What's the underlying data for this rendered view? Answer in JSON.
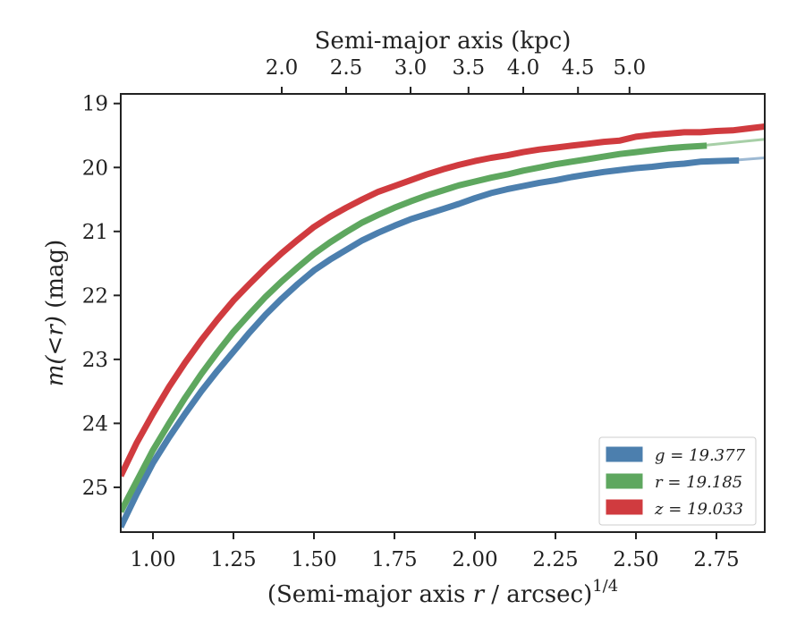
{
  "chart_data": {
    "type": "line",
    "xlabel": "(Semi-major axis",
    "xlabel_var": "r",
    "xlabel_mid": " / arcsec)",
    "xlabel_sup": "1/4",
    "ylabel_var": "m(<r)",
    "ylabel_unit": " (mag)",
    "top_xlabel": "Semi-major axis (kpc)",
    "xlim": [
      0.9,
      2.9
    ],
    "ylim": [
      25.7,
      18.85
    ],
    "x_ticks": [
      1.0,
      1.25,
      1.5,
      1.75,
      2.0,
      2.25,
      2.5,
      2.75
    ],
    "x_tick_labels": [
      "1.00",
      "1.25",
      "1.50",
      "1.75",
      "2.00",
      "2.25",
      "2.50",
      "2.75"
    ],
    "y_ticks": [
      19,
      20,
      21,
      22,
      23,
      24,
      25
    ],
    "y_tick_labels": [
      "19",
      "20",
      "21",
      "22",
      "23",
      "24",
      "25"
    ],
    "top_ticks": [
      2.0,
      2.5,
      3.0,
      3.5,
      4.0,
      4.5,
      5.0
    ],
    "top_tick_labels": [
      "2.0",
      "2.5",
      "3.0",
      "3.5",
      "4.0",
      "4.5",
      "5.0"
    ],
    "top_tick_positions": [
      1.4,
      1.6,
      1.8,
      1.98,
      2.15,
      2.32,
      2.48
    ],
    "legend_position": "lower-right",
    "series": [
      {
        "name": "g",
        "legend_label": "g = 19.377",
        "color": "#4c7fae",
        "x": [
          0.9,
          0.95,
          1.0,
          1.05,
          1.1,
          1.15,
          1.2,
          1.25,
          1.3,
          1.35,
          1.4,
          1.45,
          1.5,
          1.55,
          1.6,
          1.65,
          1.7,
          1.75,
          1.8,
          1.85,
          1.9,
          1.95,
          2.0,
          2.05,
          2.1,
          2.15,
          2.2,
          2.25,
          2.3,
          2.35,
          2.4,
          2.45,
          2.5,
          2.55,
          2.6,
          2.65,
          2.7,
          2.75,
          2.82
        ],
        "y": [
          25.62,
          25.1,
          24.62,
          24.22,
          23.85,
          23.5,
          23.18,
          22.88,
          22.58,
          22.3,
          22.05,
          21.82,
          21.61,
          21.44,
          21.29,
          21.14,
          21.02,
          20.91,
          20.81,
          20.73,
          20.65,
          20.57,
          20.48,
          20.4,
          20.34,
          20.29,
          20.24,
          20.2,
          20.15,
          20.11,
          20.07,
          20.04,
          20.01,
          19.99,
          19.96,
          19.94,
          19.91,
          19.9,
          19.89
        ],
        "ext_x": [
          2.82,
          2.9
        ],
        "ext_y": [
          19.88,
          19.85
        ]
      },
      {
        "name": "r",
        "legend_label": "r = 19.185",
        "color": "#5ea75f",
        "x": [
          0.9,
          0.95,
          1.0,
          1.05,
          1.1,
          1.15,
          1.2,
          1.25,
          1.3,
          1.35,
          1.4,
          1.45,
          1.5,
          1.55,
          1.6,
          1.65,
          1.7,
          1.75,
          1.8,
          1.85,
          1.9,
          1.95,
          2.0,
          2.05,
          2.1,
          2.15,
          2.2,
          2.25,
          2.3,
          2.35,
          2.4,
          2.45,
          2.5,
          2.55,
          2.6,
          2.65,
          2.72
        ],
        "y": [
          25.38,
          24.9,
          24.42,
          24.0,
          23.6,
          23.23,
          22.89,
          22.57,
          22.29,
          22.02,
          21.78,
          21.56,
          21.35,
          21.17,
          21.01,
          20.86,
          20.74,
          20.63,
          20.53,
          20.44,
          20.36,
          20.28,
          20.22,
          20.16,
          20.11,
          20.05,
          20.0,
          19.95,
          19.91,
          19.87,
          19.83,
          19.79,
          19.76,
          19.73,
          19.7,
          19.68,
          19.66
        ],
        "ext_x": [
          2.72,
          2.9
        ],
        "ext_y": [
          19.65,
          19.56
        ]
      },
      {
        "name": "z",
        "legend_label": "z = 19.033",
        "color": "#d03b3f",
        "x": [
          0.9,
          0.95,
          1.0,
          1.05,
          1.1,
          1.15,
          1.2,
          1.25,
          1.3,
          1.35,
          1.4,
          1.45,
          1.5,
          1.55,
          1.6,
          1.65,
          1.7,
          1.75,
          1.8,
          1.85,
          1.9,
          1.95,
          2.0,
          2.05,
          2.1,
          2.15,
          2.2,
          2.25,
          2.3,
          2.35,
          2.4,
          2.45,
          2.5,
          2.55,
          2.6,
          2.65,
          2.7,
          2.75,
          2.8,
          2.85,
          2.9
        ],
        "y": [
          24.82,
          24.3,
          23.85,
          23.43,
          23.05,
          22.7,
          22.38,
          22.08,
          21.82,
          21.57,
          21.34,
          21.13,
          20.93,
          20.77,
          20.63,
          20.5,
          20.38,
          20.29,
          20.2,
          20.11,
          20.03,
          19.96,
          19.9,
          19.85,
          19.81,
          19.76,
          19.72,
          19.69,
          19.66,
          19.63,
          19.6,
          19.58,
          19.52,
          19.49,
          19.47,
          19.45,
          19.45,
          19.43,
          19.42,
          19.39,
          19.36
        ]
      }
    ]
  }
}
